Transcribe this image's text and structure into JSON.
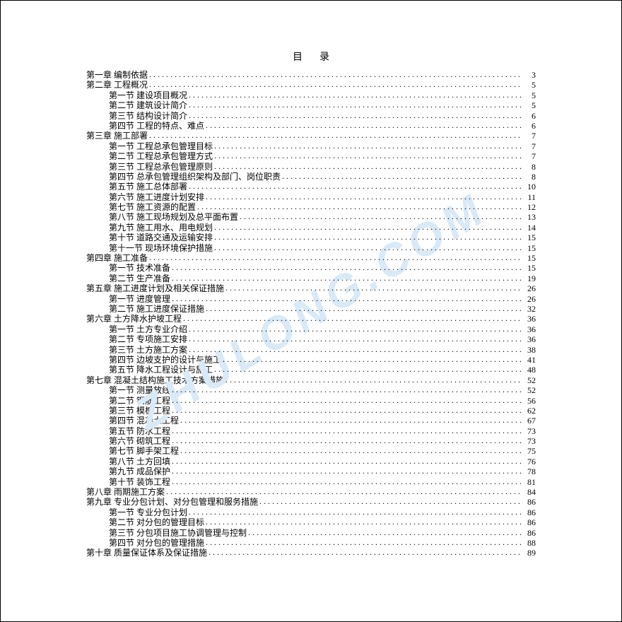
{
  "title": "目录",
  "watermark": {
    "text": "ZHULONG.COM",
    "color": "#d8e9f7"
  },
  "toc": [
    {
      "indent": 0,
      "label": "第一章  编制依据",
      "page": 3
    },
    {
      "indent": 0,
      "label": "第二章  工程概况",
      "page": 5
    },
    {
      "indent": 1,
      "label": "第一节  建设项目概况",
      "page": 5
    },
    {
      "indent": 1,
      "label": "第二节  建筑设计简介",
      "page": 5
    },
    {
      "indent": 1,
      "label": "第三节  结构设计简介",
      "page": 6
    },
    {
      "indent": 1,
      "label": "第四节  工程的特点、难点",
      "page": 6
    },
    {
      "indent": 0,
      "label": "第三章  施工部署",
      "page": 7
    },
    {
      "indent": 1,
      "label": "第一节  工程总承包管理目标",
      "page": 7
    },
    {
      "indent": 1,
      "label": "第二节  工程总承包管理方式",
      "page": 7
    },
    {
      "indent": 1,
      "label": "第三节  工程总承包管理原则",
      "page": 8
    },
    {
      "indent": 1,
      "label": "第四节  总承包管理组织架构及部门、岗位职责",
      "page": 8
    },
    {
      "indent": 1,
      "label": "第五节  施工总体部署",
      "page": 10
    },
    {
      "indent": 1,
      "label": "第六节  施工进度计划安排",
      "page": 11
    },
    {
      "indent": 1,
      "label": "第七节  施工资源的配置",
      "page": 12
    },
    {
      "indent": 1,
      "label": "第八节  施工现场规划及总平面布置",
      "page": 13
    },
    {
      "indent": 1,
      "label": "第九节  施工用水、用电规划",
      "page": 14
    },
    {
      "indent": 1,
      "label": "第十节  道路交通及运输安排",
      "page": 15
    },
    {
      "indent": 1,
      "label": "第十一节  现场环境保护措施",
      "page": 15
    },
    {
      "indent": 0,
      "label": "第四章  施工准备",
      "page": 15
    },
    {
      "indent": 1,
      "label": "第一节  技术准备",
      "page": 15
    },
    {
      "indent": 1,
      "label": "第二节  生产准备",
      "page": 19
    },
    {
      "indent": 0,
      "label": "第五章  施工进度计划及相关保证措施",
      "page": 26
    },
    {
      "indent": 1,
      "label": "第一节  进度管理",
      "page": 26
    },
    {
      "indent": 1,
      "label": "第二节  施工进度保证措施",
      "page": 32
    },
    {
      "indent": 0,
      "label": "第六章  土方降水护坡工程",
      "page": 36
    },
    {
      "indent": 1,
      "label": "第一节  土方专业介绍",
      "page": 36
    },
    {
      "indent": 1,
      "label": "第二节  专项施工安排",
      "page": 36
    },
    {
      "indent": 1,
      "label": "第三节  土方施工方案",
      "page": 38
    },
    {
      "indent": 1,
      "label": "第四节  边坡支护的设计与施工",
      "page": 41
    },
    {
      "indent": 1,
      "label": "第五节  降水工程设计与施工",
      "page": 48
    },
    {
      "indent": 0,
      "label": "第七章  混凝土结构施工技术方案措施",
      "page": 52
    },
    {
      "indent": 1,
      "label": "第一节  测量放线",
      "page": 52
    },
    {
      "indent": 1,
      "label": "第二节  钢筋工程",
      "page": 56
    },
    {
      "indent": 1,
      "label": "第三节  模板工程",
      "page": 62
    },
    {
      "indent": 1,
      "label": "第四节  混凝土工程",
      "page": 67
    },
    {
      "indent": 1,
      "label": "第五节  防水工程",
      "page": 73
    },
    {
      "indent": 1,
      "label": "第六节  砌筑工程",
      "page": 73
    },
    {
      "indent": 1,
      "label": "第七节  脚手架工程",
      "page": 75
    },
    {
      "indent": 1,
      "label": "第八节  土方回填",
      "page": 76
    },
    {
      "indent": 1,
      "label": "第九节  成品保护",
      "page": 78
    },
    {
      "indent": 1,
      "label": "第十节  装饰工程",
      "page": 81
    },
    {
      "indent": 0,
      "label": "第八章  雨期施工方案",
      "page": 84
    },
    {
      "indent": 0,
      "label": "第九章  专业分包计划、对分包管理和服务措施",
      "page": 86
    },
    {
      "indent": 1,
      "label": "第一节  专业分包计划",
      "page": 86
    },
    {
      "indent": 1,
      "label": "第二节  对分包的管理目标",
      "page": 86
    },
    {
      "indent": 1,
      "label": "第三节  分包项目施工协调管理与控制",
      "page": 86
    },
    {
      "indent": 1,
      "label": "第四节  对分包的管理措施",
      "page": 88
    },
    {
      "indent": 0,
      "label": "第十章  质量保证体系及保证措施",
      "page": 89
    }
  ]
}
